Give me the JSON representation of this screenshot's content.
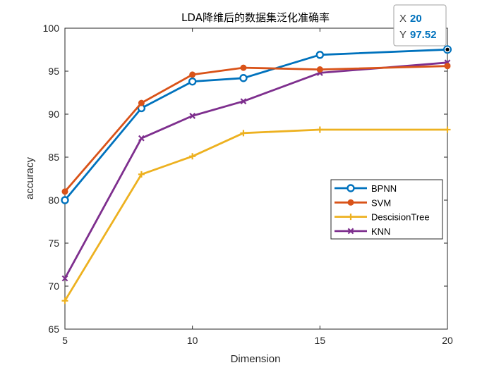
{
  "chart_data": {
    "type": "line",
    "title": "LDA降维后的数据集泛化准确率",
    "xlabel": "Dimension",
    "ylabel": "accuracy",
    "xlim": [
      5,
      20
    ],
    "ylim": [
      65,
      100
    ],
    "xticks": [
      5,
      10,
      15,
      20
    ],
    "yticks": [
      65,
      70,
      75,
      80,
      85,
      90,
      95,
      100
    ],
    "grid": false,
    "legend_position": "right",
    "series": [
      {
        "name": "BPNN",
        "color": "#0072BD",
        "marker": "circle-open",
        "x": [
          5,
          8,
          10,
          12,
          15,
          20
        ],
        "y": [
          80.0,
          90.7,
          93.8,
          94.2,
          96.9,
          97.52
        ]
      },
      {
        "name": "SVM",
        "color": "#D95319",
        "marker": "circle-filled",
        "x": [
          5,
          8,
          10,
          12,
          15,
          20
        ],
        "y": [
          81.0,
          91.3,
          94.6,
          95.4,
          95.2,
          95.6
        ]
      },
      {
        "name": "DescisionTree",
        "color": "#EDB120",
        "marker": "plus",
        "x": [
          5,
          8,
          10,
          12,
          15,
          20
        ],
        "y": [
          68.3,
          83.0,
          85.1,
          87.8,
          88.2,
          88.2
        ]
      },
      {
        "name": "KNN",
        "color": "#7E2F8E",
        "marker": "x",
        "x": [
          5,
          8,
          10,
          12,
          15,
          20
        ],
        "y": [
          70.9,
          87.2,
          89.8,
          91.5,
          94.8,
          96.0
        ]
      }
    ],
    "datatip": {
      "x_label": "X",
      "x_value": "20",
      "y_label": "Y",
      "y_value": "97.52",
      "value_color": "#0072BD"
    }
  }
}
